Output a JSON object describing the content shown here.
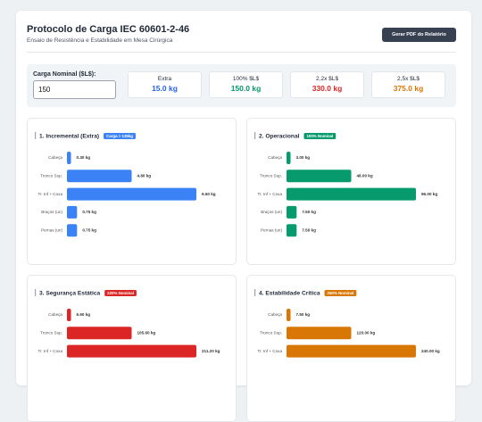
{
  "header": {
    "title": "Protocolo de Carga IEC 60601-2-46",
    "subtitle": "Ensaio de Resistência e Estabilidade em Mesa Cirúrgica",
    "button": "Gerar PDF do Relatório"
  },
  "input": {
    "label": "Carga Nominal ($L$):",
    "value": 150
  },
  "summary": [
    {
      "label": "Extra",
      "value": "15.0 kg",
      "color": "#2563eb"
    },
    {
      "label": "100% $L$",
      "value": "150.0 kg",
      "color": "#059669"
    },
    {
      "label": "2,2x $L$",
      "value": "330.0 kg",
      "color": "#dc2626"
    },
    {
      "label": "2,5x $L$",
      "value": "375.0 kg",
      "color": "#d97706"
    }
  ],
  "chart_data": [
    {
      "type": "bar",
      "orientation": "horizontal",
      "title": "1. Incremental (Extra)",
      "badge": "Carga > 135kg",
      "color": "#3b82f6",
      "categories": [
        "Cabeça",
        "Tronco Sup.",
        "Tr. Inf + Coxa",
        "Braços (un)",
        "Pernas (un)"
      ],
      "values": [
        0.3,
        4.8,
        9.6,
        0.75,
        0.75
      ],
      "value_labels": [
        "0.30 kg",
        "4.80 kg",
        "9.60 kg",
        "0.75 kg",
        "0.75 kg"
      ]
    },
    {
      "type": "bar",
      "orientation": "horizontal",
      "title": "2. Operacional",
      "badge": "100% Nominal",
      "color": "#079a6c",
      "categories": [
        "Cabeça",
        "Tronco Sup.",
        "Tr. Inf + Coxa",
        "Braços (un)",
        "Pernas (un)"
      ],
      "values": [
        3,
        48,
        96,
        7.5,
        7.5
      ],
      "value_labels": [
        "3.00 kg",
        "48.00 kg",
        "96.00 kg",
        "7.50 kg",
        "7.50 kg"
      ]
    },
    {
      "type": "bar",
      "orientation": "horizontal",
      "title": "3. Segurança Estática",
      "badge": "220% Nominal",
      "color": "#dc2626",
      "categories": [
        "Cabeça",
        "Tronco Sup.",
        "Tr. Inf + Coxa"
      ],
      "values": [
        6.6,
        105.6,
        211.2
      ],
      "value_labels": [
        "6.60 kg",
        "105.60 kg",
        "211.20 kg"
      ]
    },
    {
      "type": "bar",
      "orientation": "horizontal",
      "title": "4. Estabilidade Crítica",
      "badge": "250% Nominal",
      "color": "#d97706",
      "categories": [
        "Cabeça",
        "Tronco Sup.",
        "Tr. Inf + Coxa"
      ],
      "values": [
        7.5,
        120,
        240
      ],
      "value_labels": [
        "7.50 kg",
        "120.00 kg",
        "240.00 kg"
      ]
    }
  ]
}
